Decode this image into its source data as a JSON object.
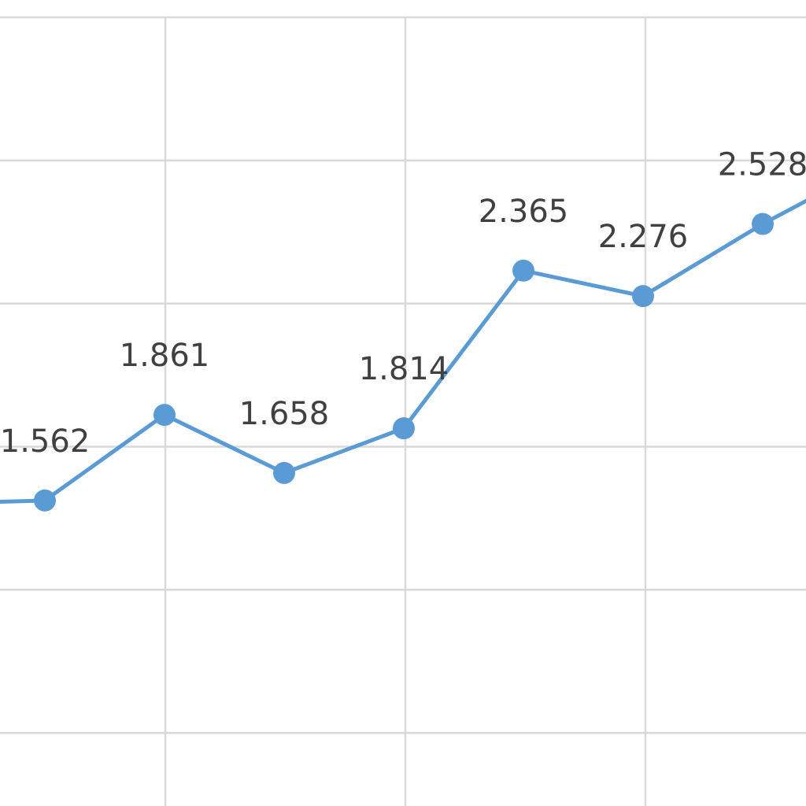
{
  "chart_data": {
    "type": "line",
    "title": "",
    "xlabel": "",
    "ylabel": "",
    "ylim": [
      0.5,
      3.25
    ],
    "grid": true,
    "legend": "none",
    "series": [
      {
        "color": "#5b9bd5",
        "points": [
          {
            "x": 0,
            "y": 1.55,
            "label": ""
          },
          {
            "x": 1,
            "y": 1.562,
            "label": "1.562"
          },
          {
            "x": 2,
            "y": 1.861,
            "label": "1.861"
          },
          {
            "x": 3,
            "y": 1.658,
            "label": "1.658"
          },
          {
            "x": 4,
            "y": 1.814,
            "label": "1.814"
          },
          {
            "x": 5,
            "y": 2.365,
            "label": "2.365"
          },
          {
            "x": 6,
            "y": 2.276,
            "label": "2.276"
          },
          {
            "x": 7,
            "y": 2.528,
            "label": "2.528"
          },
          {
            "x": 8,
            "y": 2.75,
            "label": ""
          }
        ]
      }
    ]
  }
}
